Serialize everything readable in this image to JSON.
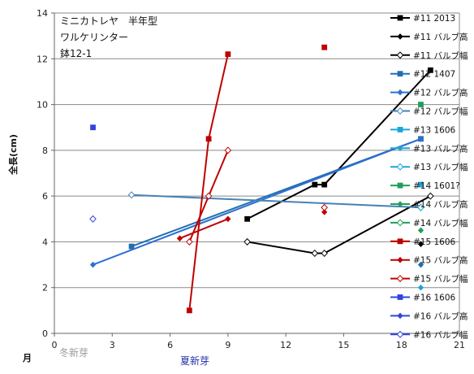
{
  "chart_data": {
    "type": "line",
    "title_lines": [
      "ミニカトレヤ　半年型",
      "ワルケリンター",
      "鉢12-1"
    ],
    "ylabel": "全長(cm)",
    "xlabel": "月",
    "x_annotations": [
      "冬新芽",
      "夏新芽"
    ],
    "xlim": [
      0,
      21
    ],
    "ylim": [
      0,
      14
    ],
    "x_ticks": [
      0,
      3,
      6,
      9,
      12,
      15,
      18,
      21
    ],
    "y_ticks": [
      0,
      2,
      4,
      6,
      8,
      10,
      12,
      14
    ],
    "grid": "horizontal",
    "legend_position": "right",
    "series": [
      {
        "name": "#11 2013",
        "color": "#000000",
        "marker": "square",
        "line": true,
        "x": [
          10,
          13.5,
          14,
          19.5
        ],
        "y": [
          5,
          6.5,
          6.5,
          11.5
        ]
      },
      {
        "name": "#11 バルブ高",
        "color": "#000000",
        "marker": "diamond",
        "line": false,
        "x": [],
        "y": []
      },
      {
        "name": "#11 バルブ幅",
        "color": "#000000",
        "marker": "diamond-open",
        "line": true,
        "x": [
          10,
          13.5,
          14,
          19.5
        ],
        "y": [
          4,
          3.5,
          3.5,
          6
        ]
      },
      {
        "name": "#12 1407",
        "color": "#1f6fb2",
        "marker": "square",
        "line": true,
        "x": [
          4,
          19
        ],
        "y": [
          3.8,
          8.5
        ]
      },
      {
        "name": "#12 バルブ高",
        "color": "#2e6fd0",
        "marker": "diamond",
        "line": true,
        "x": [
          2,
          19
        ],
        "y": [
          3,
          8.5
        ]
      },
      {
        "name": "#12 バルブ幅",
        "color": "#4682b4",
        "marker": "diamond-open",
        "line": true,
        "x": [
          4,
          19
        ],
        "y": [
          6.05,
          5.5
        ]
      },
      {
        "name": "#13 1606",
        "color": "#1ba6d8",
        "marker": "square",
        "line": false,
        "x": [
          19
        ],
        "y": [
          6.5
        ]
      },
      {
        "name": "#13 バルブ高",
        "color": "#1ba6d8",
        "marker": "diamond",
        "line": false,
        "x": [
          19
        ],
        "y": [
          2
        ]
      },
      {
        "name": "#13 バルブ幅",
        "color": "#1ba6d8",
        "marker": "diamond-open",
        "line": false,
        "x": [],
        "y": []
      },
      {
        "name": "#14 1601?",
        "color": "#1f9f5a",
        "marker": "square",
        "line": false,
        "x": [
          19
        ],
        "y": [
          10
        ]
      },
      {
        "name": "#14 バルブ高",
        "color": "#1f9f5a",
        "marker": "diamond",
        "line": false,
        "x": [
          19
        ],
        "y": [
          4.5
        ]
      },
      {
        "name": "#14 バルブ幅",
        "color": "#1f9f5a",
        "marker": "diamond-open",
        "line": false,
        "x": [],
        "y": []
      },
      {
        "name": "#15 1606",
        "color": "#c00000",
        "marker": "square",
        "line": true,
        "x": [
          7,
          8,
          9
        ],
        "y": [
          1,
          8.5,
          12.2
        ]
      },
      {
        "name": "#15 バルブ高",
        "color": "#c00000",
        "marker": "diamond",
        "line": true,
        "x": [
          6.5,
          9
        ],
        "y": [
          4.15,
          5
        ]
      },
      {
        "name": "#15 バルブ幅",
        "color": "#c00000",
        "marker": "diamond-open",
        "line": true,
        "x": [
          7,
          8,
          9
        ],
        "y": [
          4,
          6,
          8
        ]
      },
      {
        "name": "#16 1606",
        "color": "#3344dd",
        "marker": "square",
        "line": false,
        "x": [
          2
        ],
        "y": [
          9
        ]
      },
      {
        "name": "#16 バルブ高",
        "color": "#3344dd",
        "marker": "diamond",
        "line": false,
        "x": [],
        "y": []
      },
      {
        "name": "#16 バルブ幅",
        "color": "#3344dd",
        "marker": "diamond-open",
        "line": false,
        "x": [
          2
        ],
        "y": [
          5
        ]
      }
    ],
    "extra_points": [
      {
        "color": "#c00000",
        "marker": "square",
        "x": 14,
        "y": 12.5
      },
      {
        "color": "#c00000",
        "marker": "diamond",
        "x": 14,
        "y": 5.3
      },
      {
        "color": "#c00000",
        "marker": "diamond-open",
        "x": 14,
        "y": 5.5
      },
      {
        "color": "#000000",
        "marker": "diamond",
        "x": 19,
        "y": 3.9
      },
      {
        "color": "#1f6fb2",
        "marker": "diamond",
        "x": 19,
        "y": 3
      },
      {
        "color": "#1ba6d8",
        "marker": "diamond-open",
        "x": 19,
        "y": 5.5
      }
    ]
  }
}
